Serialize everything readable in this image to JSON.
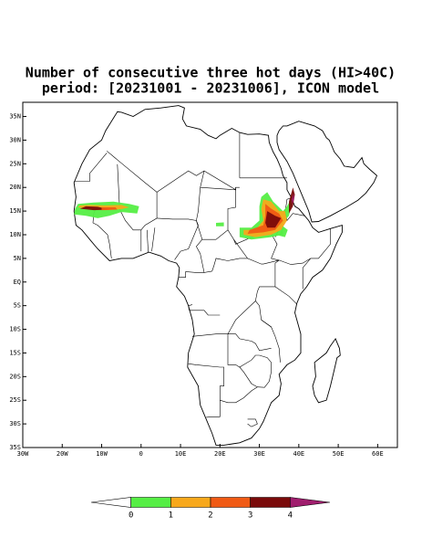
{
  "map": {
    "title": "Number of consecutive three hot days (HI>40C)",
    "subtitle": "period: [20231001 - 20231006], ICON model",
    "xlim": [
      -30,
      65
    ],
    "ylim": [
      -35,
      38
    ],
    "xticks": [
      {
        "value": -30,
        "label": "30W"
      },
      {
        "value": -20,
        "label": "20W"
      },
      {
        "value": -10,
        "label": "10W"
      },
      0,
      {
        "value": 10,
        "label": "10E"
      },
      {
        "value": 20,
        "label": "20E"
      },
      {
        "value": 30,
        "label": "30E"
      },
      {
        "value": 40,
        "label": "40E"
      },
      {
        "value": 50,
        "label": "50E"
      },
      {
        "value": 60,
        "label": "60E"
      }
    ],
    "yticks": [
      {
        "value": 35,
        "label": "35N"
      },
      {
        "value": 30,
        "label": "30N"
      },
      {
        "value": 25,
        "label": "25N"
      },
      {
        "value": 20,
        "label": "20N"
      },
      {
        "value": 15,
        "label": "15N"
      },
      {
        "value": 10,
        "label": "10N"
      },
      {
        "value": 5,
        "label": "5N"
      },
      {
        "value": 0,
        "label": "EQ"
      },
      {
        "value": -5,
        "label": "5S"
      },
      {
        "value": -10,
        "label": "10S"
      },
      {
        "value": -15,
        "label": "15S"
      },
      {
        "value": -20,
        "label": "20S"
      },
      {
        "value": -25,
        "label": "25S"
      },
      {
        "value": -30,
        "label": "30S"
      },
      {
        "value": -35,
        "label": "35S"
      }
    ],
    "colorbar": {
      "levels": [
        0,
        1,
        2,
        3,
        4
      ],
      "colors": [
        "#ffffff",
        "#55ee44",
        "#f7a81b",
        "#f05a14",
        "#7a0a0a",
        "#a01e6e"
      ]
    }
  }
}
